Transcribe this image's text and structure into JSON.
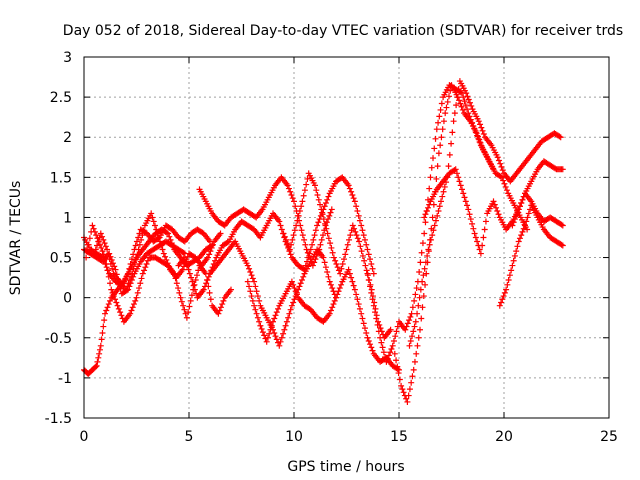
{
  "chart_data": {
    "type": "scatter",
    "title": "Day 052 of 2018, Sidereal Day-to-day VTEC variation (SDTVAR) for receiver trds",
    "xlabel": "GPS time / hours",
    "ylabel": "SDTVAR / TECUs",
    "xlim": [
      0,
      25
    ],
    "ylim": [
      -1.5,
      3
    ],
    "x_ticks": [
      "0",
      "5",
      "10",
      "15",
      "20",
      "25"
    ],
    "y_ticks": [
      "-1.5",
      "-1",
      "-0.5",
      "0",
      "0.5",
      "1",
      "1.5",
      "2",
      "2.5",
      "3"
    ],
    "grid": true,
    "marker": "+",
    "colors": {
      "series": "#ff0000",
      "grid": "#a0a0a0",
      "axis": "#000000"
    },
    "tracks": [
      {
        "x": [
          0.0,
          0.3,
          0.6,
          0.9,
          1.2,
          1.5,
          1.8,
          2.1,
          2.4,
          2.7,
          3.0,
          3.3,
          3.6,
          3.9,
          4.2,
          4.5,
          4.8,
          5.1,
          5.4,
          5.7,
          6.0
        ],
        "y": [
          0.75,
          0.6,
          0.55,
          0.5,
          0.3,
          0.2,
          0.15,
          0.3,
          0.6,
          0.85,
          0.8,
          0.7,
          0.75,
          0.9,
          0.85,
          0.75,
          0.7,
          0.8,
          0.85,
          0.8,
          0.7
        ]
      },
      {
        "x": [
          0.0,
          0.2,
          0.4,
          0.6,
          0.8,
          1.0,
          1.3,
          1.6,
          1.9,
          2.2,
          2.5,
          2.8,
          3.1,
          3.4,
          3.7,
          4.0,
          4.3,
          4.6,
          4.9,
          5.2,
          5.5,
          5.8,
          6.1
        ],
        "y": [
          -0.9,
          -0.95,
          -0.9,
          -0.85,
          -0.6,
          -0.2,
          0.0,
          0.1,
          0.2,
          0.35,
          0.5,
          0.6,
          0.7,
          0.8,
          0.85,
          0.8,
          0.6,
          0.5,
          0.4,
          0.45,
          0.5,
          0.6,
          0.65
        ]
      },
      {
        "x": [
          0.1,
          0.4,
          0.7,
          1.0,
          1.3,
          1.6,
          1.9,
          2.2,
          2.5,
          2.8,
          3.1,
          3.4,
          3.7,
          4.0,
          4.3,
          4.6,
          4.9,
          5.2,
          5.5,
          5.8,
          6.1,
          6.4,
          6.7,
          7.0
        ],
        "y": [
          0.5,
          0.9,
          0.7,
          0.5,
          0.1,
          -0.1,
          -0.3,
          -0.2,
          0.0,
          0.3,
          0.5,
          0.5,
          0.45,
          0.4,
          0.3,
          0.0,
          -0.25,
          0.1,
          0.4,
          0.3,
          -0.1,
          -0.2,
          0.0,
          0.1
        ]
      },
      {
        "x": [
          0.5,
          0.8,
          1.1,
          1.4,
          1.7,
          2.0,
          2.3,
          2.6,
          2.9,
          3.2,
          3.5,
          3.8,
          4.1,
          4.4,
          4.7,
          5.0,
          5.3,
          5.6,
          5.9,
          6.2,
          6.5
        ],
        "y": [
          0.55,
          0.8,
          0.6,
          0.3,
          0.2,
          0.1,
          0.3,
          0.6,
          0.9,
          1.05,
          0.8,
          0.55,
          0.35,
          0.25,
          0.35,
          0.55,
          0.5,
          0.4,
          0.5,
          0.7,
          0.8
        ]
      },
      {
        "x": [
          5.5,
          5.8,
          6.1,
          6.4,
          6.7,
          7.0,
          7.3,
          7.6,
          7.9,
          8.2,
          8.5,
          8.8,
          9.1,
          9.4,
          9.7,
          10.0,
          10.3,
          10.6,
          10.9,
          11.2,
          11.5,
          11.8
        ],
        "y": [
          1.35,
          1.2,
          1.05,
          0.95,
          0.9,
          1.0,
          1.05,
          1.1,
          1.05,
          1.0,
          1.1,
          1.25,
          1.4,
          1.5,
          1.4,
          1.2,
          0.9,
          0.6,
          0.4,
          0.6,
          0.9,
          1.1
        ]
      },
      {
        "x": [
          6.0,
          6.3,
          6.6,
          6.9,
          7.2,
          7.5,
          7.8,
          8.1,
          8.4,
          8.7,
          9.0,
          9.3,
          9.6,
          9.9,
          10.2,
          10.5,
          10.8,
          11.1,
          11.4,
          11.7,
          12.0,
          12.3,
          12.6,
          12.9,
          13.2,
          13.5,
          13.8
        ],
        "y": [
          0.3,
          0.5,
          0.65,
          0.7,
          0.85,
          0.95,
          0.9,
          0.85,
          0.75,
          0.9,
          1.05,
          0.95,
          0.7,
          0.5,
          0.4,
          0.35,
          0.6,
          0.9,
          1.1,
          1.3,
          1.45,
          1.5,
          1.4,
          1.2,
          0.9,
          0.6,
          0.3
        ]
      },
      {
        "x": [
          4.5,
          4.8,
          5.1,
          5.4,
          5.7,
          6.0,
          6.3,
          6.6,
          6.9,
          7.2,
          7.5,
          7.8,
          8.1,
          8.4,
          8.7,
          9.0,
          9.3,
          9.6,
          9.9,
          10.2,
          10.5,
          10.8,
          11.1,
          11.4,
          11.7,
          12.0
        ],
        "y": [
          0.4,
          0.5,
          0.25,
          0.0,
          0.1,
          0.3,
          0.4,
          0.5,
          0.6,
          0.7,
          0.55,
          0.4,
          0.2,
          -0.1,
          -0.25,
          -0.4,
          -0.6,
          -0.35,
          -0.1,
          0.1,
          0.3,
          0.45,
          0.6,
          0.5,
          0.2,
          0.0
        ]
      },
      {
        "x": [
          7.8,
          8.1,
          8.4,
          8.7,
          9.0,
          9.3,
          9.6,
          9.9,
          10.2,
          10.5,
          10.8,
          11.1,
          11.4,
          11.7,
          12.0,
          12.3,
          12.6,
          12.9,
          13.2,
          13.5,
          13.8,
          14.1,
          14.4,
          14.7,
          15.0
        ],
        "y": [
          0.2,
          -0.1,
          -0.35,
          -0.55,
          -0.3,
          -0.1,
          0.05,
          0.2,
          0.0,
          -0.1,
          -0.15,
          -0.25,
          -0.3,
          -0.2,
          0.0,
          0.2,
          0.35,
          0.1,
          -0.2,
          -0.5,
          -0.7,
          -0.8,
          -0.75,
          -0.85,
          -0.9
        ]
      },
      {
        "x": [
          9.5,
          9.8,
          10.1,
          10.4,
          10.7,
          11.0,
          11.3,
          11.6,
          11.9,
          12.2,
          12.5,
          12.8,
          13.1,
          13.4,
          13.7,
          14.0,
          14.3,
          14.6
        ],
        "y": [
          0.8,
          0.6,
          0.9,
          1.2,
          1.55,
          1.4,
          1.1,
          0.8,
          0.5,
          0.3,
          0.6,
          0.9,
          0.7,
          0.4,
          0.1,
          -0.3,
          -0.5,
          -0.4
        ]
      },
      {
        "x": [
          13.5,
          13.8,
          14.1,
          14.4,
          14.7,
          15.0,
          15.3,
          15.6,
          15.9,
          16.2,
          16.5,
          16.8,
          17.1,
          17.4,
          17.7,
          18.0,
          18.3,
          18.6,
          18.9,
          19.2,
          19.5
        ],
        "y": [
          0.3,
          -0.1,
          -0.5,
          -0.8,
          -0.6,
          -0.3,
          -0.4,
          -0.2,
          0.2,
          0.8,
          1.5,
          2.1,
          2.5,
          2.65,
          2.6,
          2.55,
          2.3,
          2.1,
          1.9,
          1.75,
          1.6
        ]
      },
      {
        "x": [
          14.8,
          15.1,
          15.4,
          15.7,
          16.0,
          16.3,
          16.6,
          16.9,
          17.2,
          17.5,
          17.8,
          18.1,
          18.4,
          18.7,
          19.0,
          19.3,
          19.6,
          19.9,
          20.2,
          20.5,
          20.8,
          21.1
        ],
        "y": [
          -0.7,
          -1.1,
          -1.3,
          -0.9,
          -0.4,
          0.3,
          1.0,
          1.8,
          2.3,
          2.65,
          2.5,
          2.3,
          2.2,
          2.05,
          1.85,
          1.7,
          1.55,
          1.5,
          1.3,
          1.15,
          1.0,
          0.85
        ]
      },
      {
        "x": [
          15.5,
          15.8,
          16.1,
          16.4,
          16.7,
          17.0,
          17.3,
          17.6,
          17.9,
          18.2,
          18.5,
          18.8,
          19.1,
          19.4,
          19.7,
          20.0,
          20.3,
          20.6,
          20.9,
          21.2,
          21.5,
          21.8,
          22.1,
          22.4,
          22.7
        ],
        "y": [
          -0.6,
          -0.3,
          0.2,
          0.6,
          0.9,
          1.2,
          1.5,
          2.2,
          2.7,
          2.55,
          2.35,
          2.2,
          2.0,
          1.9,
          1.75,
          1.55,
          1.45,
          1.55,
          1.65,
          1.75,
          1.85,
          1.95,
          2.0,
          2.05,
          2.0
        ]
      },
      {
        "x": [
          16.2,
          16.5,
          16.8,
          17.1,
          17.4,
          17.7,
          18.0,
          18.3,
          18.6,
          18.9,
          19.2,
          19.5,
          19.8,
          20.1,
          20.4,
          20.7,
          21.0,
          21.3,
          21.6,
          21.9,
          22.2,
          22.5,
          22.8
        ],
        "y": [
          1.0,
          1.2,
          1.35,
          1.45,
          1.55,
          1.6,
          1.35,
          1.1,
          0.8,
          0.55,
          1.05,
          1.2,
          1.0,
          0.85,
          0.95,
          1.1,
          1.3,
          1.45,
          1.6,
          1.7,
          1.65,
          1.6,
          1.6
        ]
      },
      {
        "x": [
          19.8,
          20.1,
          20.4,
          20.7,
          21.0,
          21.3,
          21.6,
          21.9,
          22.2,
          22.5,
          22.8
        ],
        "y": [
          -0.1,
          0.1,
          0.4,
          0.7,
          0.9,
          1.15,
          1.0,
          0.85,
          0.75,
          0.7,
          0.65
        ]
      },
      {
        "x": [
          20.4,
          20.7,
          21.0,
          21.3,
          21.6,
          21.9,
          22.2,
          22.5,
          22.8
        ],
        "y": [
          0.9,
          1.1,
          1.3,
          1.2,
          1.05,
          0.95,
          1.0,
          0.95,
          0.9
        ]
      },
      {
        "x": [
          0.0,
          0.3,
          0.6,
          0.9,
          1.2,
          1.5,
          1.8,
          2.1,
          2.4,
          2.7,
          3.0,
          3.3,
          3.6,
          3.9,
          4.2,
          4.5,
          4.8
        ],
        "y": [
          0.6,
          0.55,
          0.5,
          0.45,
          0.55,
          0.35,
          0.05,
          0.1,
          0.3,
          0.45,
          0.55,
          0.6,
          0.65,
          0.7,
          0.65,
          0.6,
          0.55
        ]
      }
    ]
  }
}
